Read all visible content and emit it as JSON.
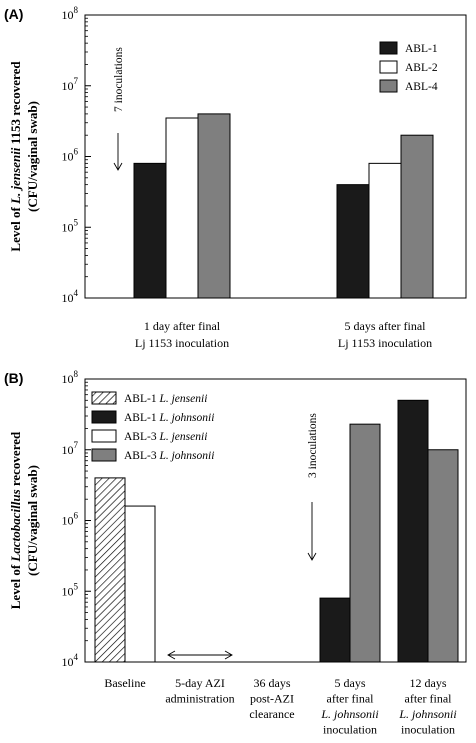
{
  "chart_data": [
    {
      "panel_label": "(A)",
      "type": "bar",
      "log_y": true,
      "ylim": [
        10000,
        100000000
      ],
      "yticks": [
        {
          "base": "10",
          "exp": "4"
        },
        {
          "base": "10",
          "exp": "5"
        },
        {
          "base": "10",
          "exp": "6"
        },
        {
          "base": "10",
          "exp": "7"
        },
        {
          "base": "10",
          "exp": "8"
        }
      ],
      "ylabel_lines": [
        [
          {
            "t": "Level of "
          },
          {
            "t": "L. jensenii",
            "i": true
          },
          {
            "t": " 1153 recovered"
          }
        ],
        [
          {
            "t": "(CFU/vaginal swab)"
          }
        ]
      ],
      "categories": [
        [
          "1 day after final",
          "Lj 1153 inoculation"
        ],
        [
          "5 days after final",
          "Lj 1153 inoculation"
        ]
      ],
      "series": [
        {
          "name": "ABL-1",
          "color": "#1a1a1a",
          "pattern": "solid",
          "values": [
            800000,
            400000
          ]
        },
        {
          "name": "ABL-2",
          "color": "#ffffff",
          "pattern": "solid",
          "values": [
            3500000,
            800000
          ]
        },
        {
          "name": "ABL-4",
          "color": "#7f7f7f",
          "pattern": "solid",
          "values": [
            4000000,
            2000000
          ]
        }
      ],
      "legend_position": "top-right",
      "annotations": [
        {
          "text": "7 inoculations",
          "category_index": 0
        }
      ]
    },
    {
      "panel_label": "(B)",
      "type": "bar",
      "log_y": true,
      "ylim": [
        10000,
        100000000
      ],
      "yticks": [
        {
          "base": "10",
          "exp": "4"
        },
        {
          "base": "10",
          "exp": "5"
        },
        {
          "base": "10",
          "exp": "6"
        },
        {
          "base": "10",
          "exp": "7"
        },
        {
          "base": "10",
          "exp": "8"
        }
      ],
      "ylabel_lines": [
        [
          {
            "t": "Level of "
          },
          {
            "t": "Lactobacillus",
            "i": true
          },
          {
            "t": " recovered"
          }
        ],
        [
          {
            "t": "(CFU/vaginal swab)"
          }
        ]
      ],
      "categories": [
        [
          [
            {
              "t": "Baseline"
            }
          ]
        ],
        [
          [
            {
              "t": "5-day AZI"
            }
          ],
          [
            {
              "t": "administration"
            }
          ]
        ],
        [
          [
            {
              "t": "36 days"
            }
          ],
          [
            {
              "t": "post-AZI"
            }
          ],
          [
            {
              "t": "clearance"
            }
          ]
        ],
        [
          [
            {
              "t": "5 days"
            }
          ],
          [
            {
              "t": "after final"
            }
          ],
          [
            {
              "t": "L. johnsonii",
              "i": true
            }
          ],
          [
            {
              "t": "inoculation"
            }
          ]
        ],
        [
          [
            {
              "t": "12 days"
            }
          ],
          [
            {
              "t": "after final"
            }
          ],
          [
            {
              "t": "L. johnsonii",
              "i": true
            }
          ],
          [
            {
              "t": "inoculation"
            }
          ]
        ]
      ],
      "series": [
        {
          "name": [
            {
              "t": "ABL-1 "
            },
            {
              "t": "L. jensenii",
              "i": true
            }
          ],
          "color": "#ffffff",
          "pattern": "hatch",
          "values": [
            4000000,
            null,
            null,
            null,
            null
          ]
        },
        {
          "name": [
            {
              "t": "ABL-1 "
            },
            {
              "t": "L. johnsonii",
              "i": true
            }
          ],
          "color": "#1a1a1a",
          "pattern": "solid",
          "values": [
            null,
            null,
            null,
            80000,
            50000000
          ]
        },
        {
          "name": [
            {
              "t": "ABL-3 "
            },
            {
              "t": "L. jensenii",
              "i": true
            }
          ],
          "color": "#ffffff",
          "pattern": "solid",
          "values": [
            1600000,
            null,
            null,
            null,
            null
          ]
        },
        {
          "name": [
            {
              "t": "ABL-3 "
            },
            {
              "t": "L. johnsonii",
              "i": true
            }
          ],
          "color": "#7f7f7f",
          "pattern": "solid",
          "values": [
            null,
            null,
            null,
            23000000,
            10000000
          ]
        }
      ],
      "legend_position": "top-left",
      "annotations": [
        {
          "text": "3 inoculations",
          "category_index": 2
        },
        {
          "text": "",
          "double_arrow_category_index": 1
        }
      ]
    }
  ]
}
